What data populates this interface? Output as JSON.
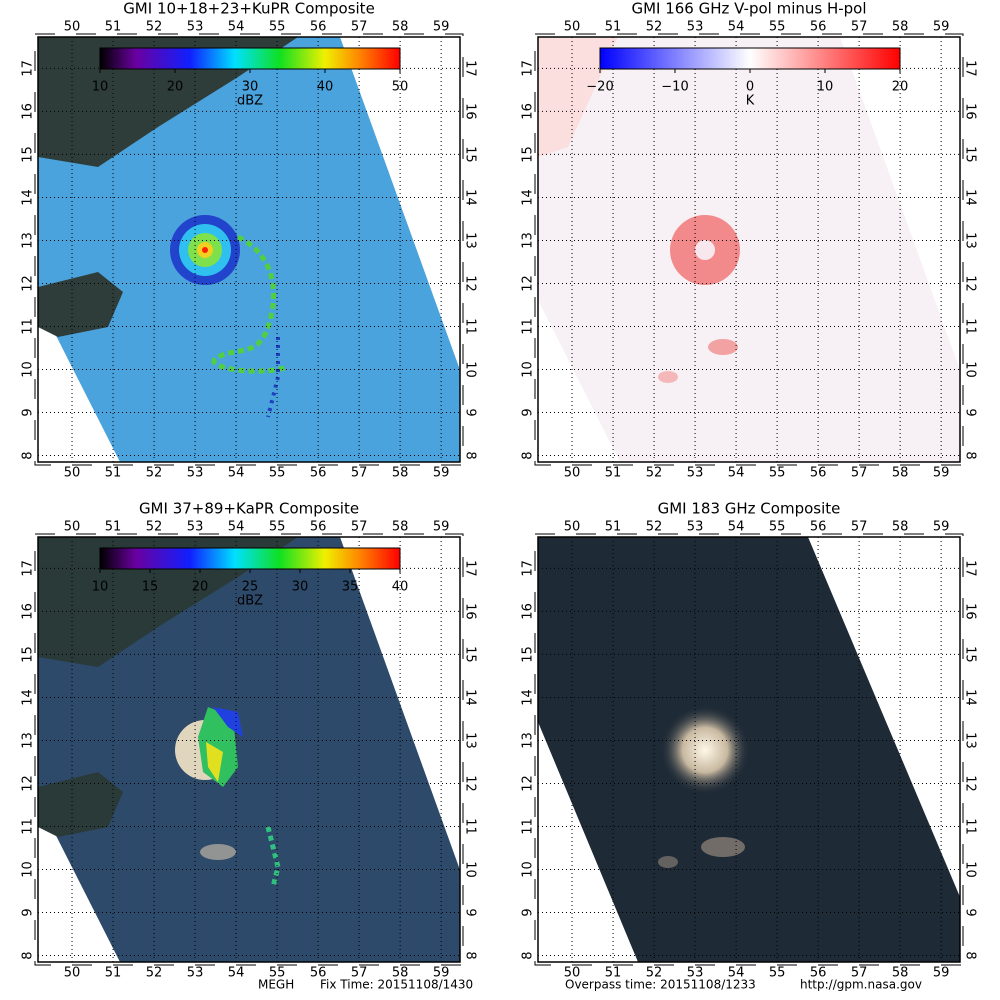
{
  "panels": [
    {
      "title": "GMI 10+18+23+KuPR Composite",
      "colorbar": {
        "ticks": [
          "10",
          "20",
          "30",
          "40",
          "50"
        ],
        "unit": "dBZ"
      }
    },
    {
      "title": "GMI 166 GHz V-pol minus H-pol",
      "colorbar": {
        "ticks": [
          "−20",
          "−10",
          "0",
          "10",
          "20"
        ],
        "unit": "K"
      }
    },
    {
      "title": "GMI 37+89+KaPR Composite",
      "colorbar": {
        "ticks": [
          "10",
          "15",
          "20",
          "25",
          "30",
          "35",
          "40"
        ],
        "unit": "dBZ"
      }
    },
    {
      "title": "GMI 183 GHz Composite"
    }
  ],
  "map": {
    "lon_range": [
      49.17,
      59.46
    ],
    "lat_range": [
      7.85,
      17.73
    ],
    "lon_ticks": [
      50,
      51,
      52,
      53,
      54,
      55,
      56,
      57,
      58,
      59
    ],
    "lat_ticks": [
      8,
      9,
      10,
      11,
      12,
      13,
      14,
      15,
      16,
      17
    ]
  },
  "footer": {
    "station": "MEGH",
    "fix_time": "Fix Time: 20151108/1430",
    "overpass_time": "Overpass time: 20151108/1233",
    "url": "http://gpm.nasa.gov"
  }
}
